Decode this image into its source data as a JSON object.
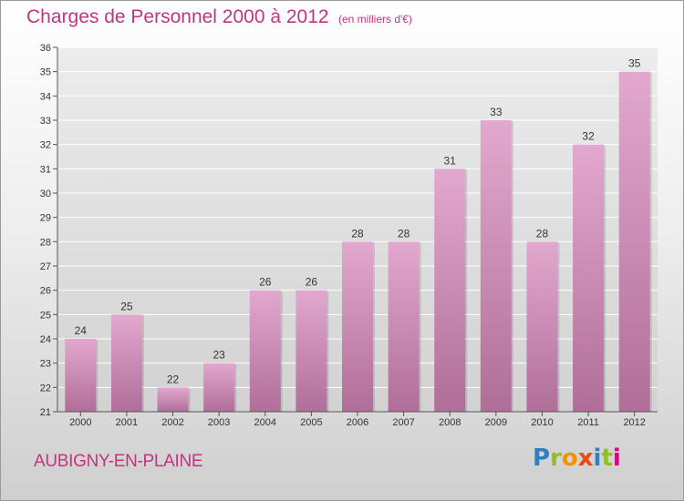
{
  "title": "Charges de Personnel 2000 à 2012",
  "subtitle": "(en milliers d'€)",
  "commune": "AUBIGNY-EN-PLAINE",
  "logo": {
    "letters": [
      "P",
      "r",
      "o",
      "x",
      "i",
      "t",
      "i"
    ],
    "colors": [
      "#2f7fc1",
      "#8cbf2a",
      "#f39200",
      "#e84a0f",
      "#2f7fc1",
      "#8cbf2a",
      "#d9007e"
    ]
  },
  "colors": {
    "title": "#c2347f",
    "bar_top": "#e3a8cf",
    "bar_bottom": "#b06e98",
    "grid": "#ffffff"
  },
  "chart_data": {
    "type": "bar",
    "categories": [
      "2000",
      "2001",
      "2002",
      "2003",
      "2004",
      "2005",
      "2006",
      "2007",
      "2008",
      "2009",
      "2010",
      "2011",
      "2012"
    ],
    "values": [
      24,
      25,
      22,
      23,
      26,
      26,
      28,
      28,
      31,
      33,
      28,
      32,
      35
    ],
    "ylim": [
      21,
      36
    ],
    "yticks": [
      21,
      22,
      23,
      24,
      25,
      26,
      27,
      28,
      29,
      30,
      31,
      32,
      33,
      34,
      35,
      36
    ],
    "grid": true,
    "data_labels": true
  }
}
